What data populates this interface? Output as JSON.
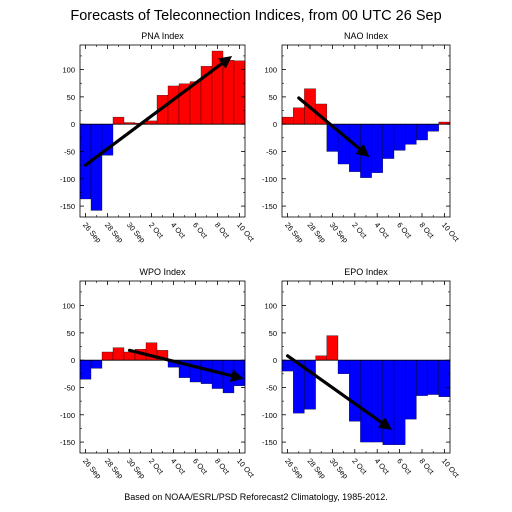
{
  "title": "Forecasts of Teleconnection Indices, from 00 UTC 26 Sep",
  "footer": "Based on NOAA/ESRL/PSD Reforecast2 Climatology, 1985-2012.",
  "colors": {
    "positive": "#ff0000",
    "negative": "#0000ff",
    "arrow": "#000000",
    "axis": "#000000"
  },
  "chart_data": [
    {
      "type": "bar",
      "title": "PNA Index",
      "x_tick_labels": [
        "26 Sep",
        "28 Sep",
        "30 Sep",
        "2 Oct",
        "4 Oct",
        "6 Oct",
        "8 Oct",
        "10 Oct"
      ],
      "categories": [
        "26 Sep",
        "27 Sep",
        "28 Sep",
        "29 Sep",
        "30 Sep",
        "1 Oct",
        "2 Oct",
        "3 Oct",
        "4 Oct",
        "5 Oct",
        "6 Oct",
        "7 Oct",
        "8 Oct",
        "9 Oct",
        "10 Oct"
      ],
      "values": [
        -137,
        -158,
        -57,
        13,
        3,
        2,
        6,
        53,
        70,
        74,
        78,
        106,
        134,
        117,
        116
      ],
      "ylim": [
        -170,
        145
      ],
      "yticks": [
        -150,
        -100,
        -50,
        0,
        50,
        100
      ],
      "trend_arrow": {
        "x_start": "26 Sep",
        "y_start": -75,
        "x_end": "9 Oct",
        "y_end": 120
      }
    },
    {
      "type": "bar",
      "title": "NAO Index",
      "x_tick_labels": [
        "26 Sep",
        "28 Sep",
        "30 Sep",
        "2 Oct",
        "4 Oct",
        "6 Oct",
        "8 Oct",
        "10 Oct"
      ],
      "categories": [
        "26 Sep",
        "27 Sep",
        "28 Sep",
        "29 Sep",
        "30 Sep",
        "1 Oct",
        "2 Oct",
        "3 Oct",
        "4 Oct",
        "5 Oct",
        "6 Oct",
        "7 Oct",
        "8 Oct",
        "9 Oct",
        "10 Oct"
      ],
      "values": [
        13,
        30,
        65,
        37,
        -50,
        -73,
        -87,
        -98,
        -89,
        -63,
        -48,
        -37,
        -29,
        -13,
        4
      ],
      "ylim": [
        -170,
        145
      ],
      "yticks": [
        -150,
        -100,
        -50,
        0,
        50,
        100
      ],
      "trend_arrow": {
        "x_start": "27 Sep",
        "y_start": 48,
        "x_end": "3 Oct",
        "y_end": -55
      }
    },
    {
      "type": "bar",
      "title": "WPO Index",
      "x_tick_labels": [
        "26 Sep",
        "28 Sep",
        "30 Sep",
        "2 Oct",
        "4 Oct",
        "6 Oct",
        "8 Oct",
        "10 Oct"
      ],
      "categories": [
        "26 Sep",
        "27 Sep",
        "28 Sep",
        "29 Sep",
        "30 Sep",
        "1 Oct",
        "2 Oct",
        "3 Oct",
        "4 Oct",
        "5 Oct",
        "6 Oct",
        "7 Oct",
        "8 Oct",
        "9 Oct",
        "10 Oct"
      ],
      "values": [
        -35,
        -15,
        15,
        23,
        15,
        20,
        32,
        18,
        -13,
        -32,
        -40,
        -43,
        -52,
        -60,
        -47
      ],
      "ylim": [
        -170,
        145
      ],
      "yticks": [
        -150,
        -100,
        -50,
        0,
        50,
        100
      ],
      "trend_arrow": {
        "x_start": "30 Sep",
        "y_start": 18,
        "x_end": "10 Oct",
        "y_end": -32
      }
    },
    {
      "type": "bar",
      "title": "EPO Index",
      "x_tick_labels": [
        "26 Sep",
        "28 Sep",
        "30 Sep",
        "2 Oct",
        "4 Oct",
        "6 Oct",
        "8 Oct",
        "10 Oct"
      ],
      "categories": [
        "26 Sep",
        "27 Sep",
        "28 Sep",
        "29 Sep",
        "30 Sep",
        "1 Oct",
        "2 Oct",
        "3 Oct",
        "4 Oct",
        "5 Oct",
        "6 Oct",
        "7 Oct",
        "8 Oct",
        "9 Oct",
        "10 Oct"
      ],
      "values": [
        -20,
        -97,
        -90,
        8,
        45,
        -25,
        -112,
        -150,
        -150,
        -155,
        -155,
        -108,
        -65,
        -63,
        -67
      ],
      "ylim": [
        -170,
        145
      ],
      "yticks": [
        -150,
        -100,
        -50,
        0,
        50,
        100
      ],
      "trend_arrow": {
        "x_start": "26 Sep",
        "y_start": 8,
        "x_end": "5 Oct",
        "y_end": -123
      }
    }
  ]
}
